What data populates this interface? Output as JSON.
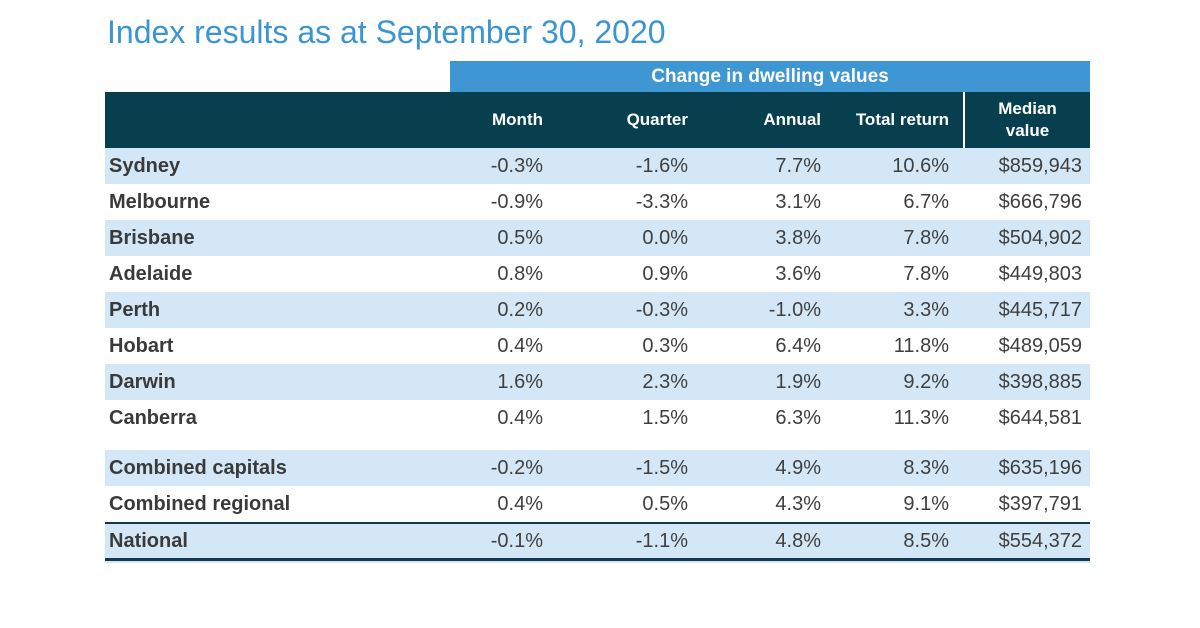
{
  "title": "Index results as at September 30, 2020",
  "colors": {
    "title_blue": "#3B95D1",
    "band_blue": "#3E97D3",
    "header_dark_teal": "#073F4F",
    "row_shade_blue": "#D4E7F6",
    "text_dark": "#3F3F3F",
    "total_border_navy": "#16384E"
  },
  "chart_data": {
    "type": "table",
    "title": "Index results as at September 30, 2020",
    "group_header": "Change in dwelling values",
    "columns": [
      "",
      "Month",
      "Quarter",
      "Annual",
      "Total return",
      "Median value"
    ],
    "median_header_lines": [
      "Median",
      "value"
    ],
    "sections": {
      "capitals": [
        [
          "Sydney",
          "-0.3%",
          "-1.6%",
          "7.7%",
          "10.6%",
          "$859,943"
        ],
        [
          "Melbourne",
          "-0.9%",
          "-3.3%",
          "3.1%",
          "6.7%",
          "$666,796"
        ],
        [
          "Brisbane",
          "0.5%",
          "0.0%",
          "3.8%",
          "7.8%",
          "$504,902"
        ],
        [
          "Adelaide",
          "0.8%",
          "0.9%",
          "3.6%",
          "7.8%",
          "$449,803"
        ],
        [
          "Perth",
          "0.2%",
          "-0.3%",
          "-1.0%",
          "3.3%",
          "$445,717"
        ],
        [
          "Hobart",
          "0.4%",
          "0.3%",
          "6.4%",
          "11.8%",
          "$489,059"
        ],
        [
          "Darwin",
          "1.6%",
          "2.3%",
          "1.9%",
          "9.2%",
          "$398,885"
        ],
        [
          "Canberra",
          "0.4%",
          "1.5%",
          "6.3%",
          "11.3%",
          "$644,581"
        ]
      ],
      "combined": [
        [
          "Combined capitals",
          "-0.2%",
          "-1.5%",
          "4.9%",
          "8.3%",
          "$635,196"
        ],
        [
          "Combined regional",
          "0.4%",
          "0.5%",
          "4.3%",
          "9.1%",
          "$397,791"
        ]
      ],
      "national": [
        [
          "National",
          "-0.1%",
          "-1.1%",
          "4.8%",
          "8.5%",
          "$554,372"
        ]
      ]
    },
    "layout_hints": {
      "group_header_spans_columns": [
        "Month",
        "Quarter",
        "Annual",
        "Total return",
        "Median value"
      ],
      "row_shading": "alternating light blue starting at Sydney; Combined capitals and National shaded",
      "national_row_rule": "dark navy rule above and thick rule below National row"
    }
  }
}
